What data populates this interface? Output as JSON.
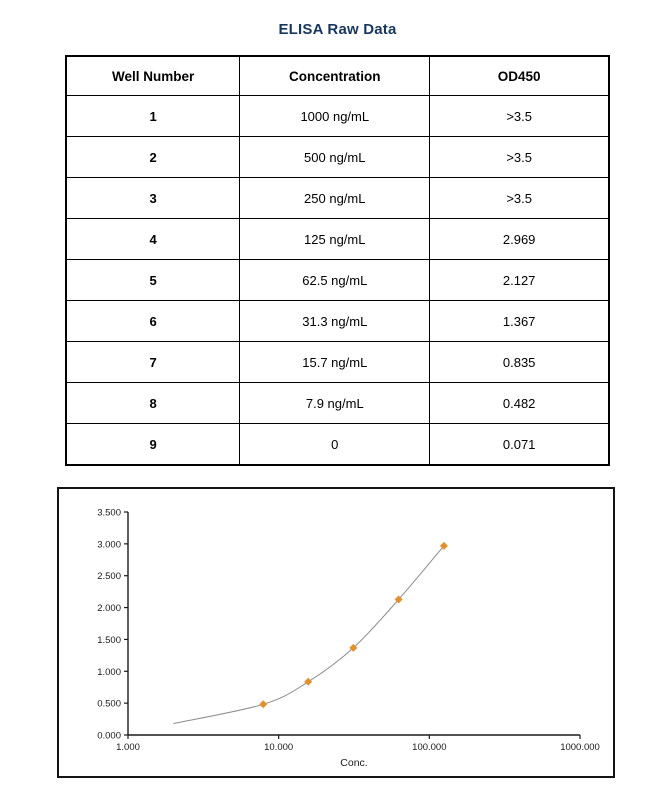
{
  "title": "ELISA Raw Data",
  "table": {
    "headers": [
      "Well Number",
      "Concentration",
      "OD450"
    ],
    "rows": [
      {
        "well": "1",
        "concentration": "1000 ng/mL",
        "od450": ">3.5"
      },
      {
        "well": "2",
        "concentration": "500 ng/mL",
        "od450": ">3.5"
      },
      {
        "well": "3",
        "concentration": "250 ng/mL",
        "od450": ">3.5"
      },
      {
        "well": "4",
        "concentration": "125 ng/mL",
        "od450": "2.969"
      },
      {
        "well": "5",
        "concentration": "62.5 ng/mL",
        "od450": "2.127"
      },
      {
        "well": "6",
        "concentration": "31.3 ng/mL",
        "od450": "1.367"
      },
      {
        "well": "7",
        "concentration": "15.7 ng/mL",
        "od450": "0.835"
      },
      {
        "well": "8",
        "concentration": "7.9 ng/mL",
        "od450": "0.482"
      },
      {
        "well": "9",
        "concentration": "0",
        "od450": "0.071"
      }
    ]
  },
  "chart_data": {
    "type": "scatter",
    "title": "",
    "xlabel": "Conc.",
    "ylabel": "",
    "x_scale": "log",
    "xlim": [
      1,
      1000
    ],
    "ylim": [
      0,
      3.5
    ],
    "grid": false,
    "legend": false,
    "x_ticks": [
      {
        "value": 1,
        "label": "1.000"
      },
      {
        "value": 10,
        "label": "10.000"
      },
      {
        "value": 100,
        "label": "100.000"
      },
      {
        "value": 1000,
        "label": "1000.000"
      }
    ],
    "y_ticks": [
      {
        "value": 0.0,
        "label": "0.000"
      },
      {
        "value": 0.5,
        "label": "0.500"
      },
      {
        "value": 1.0,
        "label": "1.000"
      },
      {
        "value": 1.5,
        "label": "1.500"
      },
      {
        "value": 2.0,
        "label": "2.000"
      },
      {
        "value": 2.5,
        "label": "2.500"
      },
      {
        "value": 3.0,
        "label": "3.000"
      },
      {
        "value": 3.5,
        "label": "3.500"
      }
    ],
    "series": [
      {
        "name": "standard-points",
        "type": "scatter",
        "marker": "diamond",
        "color": "#E0912E",
        "points": [
          {
            "x": 7.9,
            "y": 0.482
          },
          {
            "x": 15.7,
            "y": 0.835
          },
          {
            "x": 31.3,
            "y": 1.367
          },
          {
            "x": 62.5,
            "y": 2.127
          },
          {
            "x": 125,
            "y": 2.969
          }
        ]
      },
      {
        "name": "fit-curve",
        "type": "line",
        "color": "#8C8C8C",
        "points": [
          {
            "x": 2,
            "y": 0.18
          },
          {
            "x": 7.9,
            "y": 0.482
          },
          {
            "x": 15.7,
            "y": 0.835
          },
          {
            "x": 31.3,
            "y": 1.367
          },
          {
            "x": 62.5,
            "y": 2.127
          },
          {
            "x": 125,
            "y": 2.969
          }
        ]
      }
    ],
    "colors": {
      "axis": "#1a1a1a",
      "marker": "#E0912E",
      "curve": "#8C8C8C",
      "frame": "#141414",
      "title": "#17375E"
    }
  }
}
